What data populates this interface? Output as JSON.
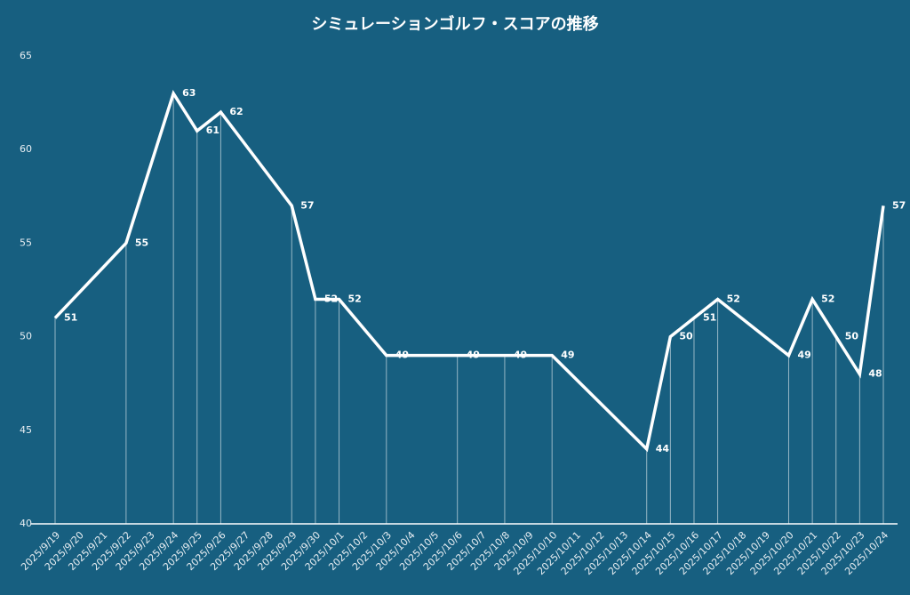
{
  "chart_data": {
    "type": "line",
    "title": "シミュレーションゴルフ・スコアの推移",
    "x": [
      "2025/9/19",
      "2025/9/22",
      "2025/9/24",
      "2025/9/25",
      "2025/9/26",
      "2025/9/29",
      "2025/9/30",
      "2025/10/1",
      "2025/10/3",
      "2025/10/6",
      "2025/10/8",
      "2025/10/10",
      "2025/10/14",
      "2025/10/15",
      "2025/10/16",
      "2025/10/17",
      "2025/10/20",
      "2025/10/21",
      "2025/10/22",
      "2025/10/23",
      "2025/10/24"
    ],
    "values": [
      51,
      55,
      63,
      61,
      62,
      57,
      52,
      52,
      49,
      49,
      49,
      49,
      44,
      50,
      51,
      52,
      49,
      52,
      50,
      48,
      57
    ],
    "color": "#ffffff",
    "xticks": [
      "2025/9/19",
      "2025/9/20",
      "2025/9/21",
      "2025/9/22",
      "2025/9/23",
      "2025/9/24",
      "2025/9/25",
      "2025/9/26",
      "2025/9/27",
      "2025/9/28",
      "2025/9/29",
      "2025/9/30",
      "2025/10/1",
      "2025/10/2",
      "2025/10/3",
      "2025/10/4",
      "2025/10/5",
      "2025/10/6",
      "2025/10/7",
      "2025/10/8",
      "2025/10/9",
      "2025/10/10",
      "2025/10/11",
      "2025/10/12",
      "2025/10/13",
      "2025/10/14",
      "2025/10/15",
      "2025/10/16",
      "2025/10/17",
      "2025/10/18",
      "2025/10/19",
      "2025/10/20",
      "2025/10/21",
      "2025/10/22",
      "2025/10/23",
      "2025/10/24"
    ],
    "ylim": [
      40,
      65
    ],
    "yticks": [
      40,
      45,
      50,
      55,
      60,
      65
    ],
    "grid": false,
    "drop_lines": true
  }
}
